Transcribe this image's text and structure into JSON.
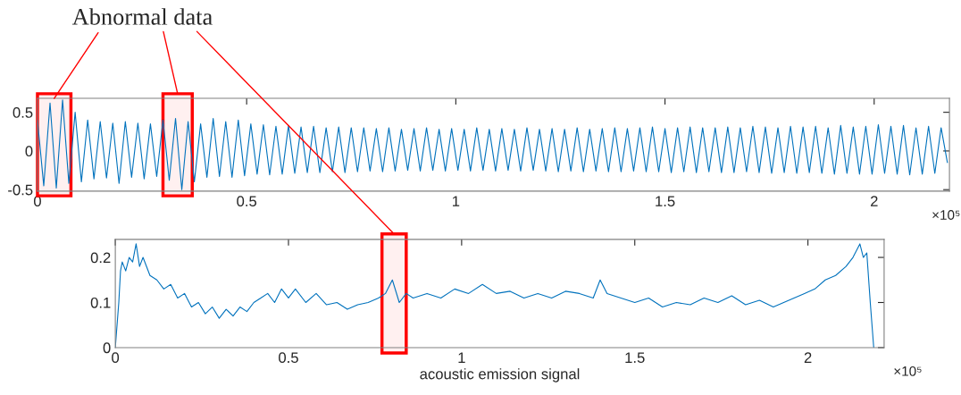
{
  "chart_data": [
    {
      "type": "line",
      "xlim": [
        0,
        2.18
      ],
      "xticks": [
        0,
        0.5,
        1,
        1.5,
        2
      ],
      "ylim": [
        -0.52,
        0.68
      ],
      "yticks": [
        -0.5,
        0,
        0.5
      ],
      "grid": false,
      "marker": "none",
      "line_style": "solid",
      "annotations": [
        {
          "text": "Abnormal data",
          "x": 0.04,
          "y": 0.68
        },
        "×10⁵"
      ],
      "bands": [
        {
          "axis": "x",
          "from": 0.0,
          "to": 0.08,
          "color": "#ff0000"
        },
        {
          "axis": "x",
          "from": 0.3,
          "to": 0.37,
          "color": "#ff0000"
        }
      ],
      "x": [
        0,
        0.015,
        0.03,
        0.045,
        0.06,
        0.075,
        0.09,
        0.105,
        0.12,
        0.135,
        0.15,
        0.165,
        0.18,
        0.195,
        0.21,
        0.225,
        0.24,
        0.255,
        0.27,
        0.285,
        0.3,
        0.315,
        0.33,
        0.345,
        0.36,
        0.375,
        0.39,
        0.405,
        0.42,
        0.435,
        0.45,
        0.465,
        0.48,
        0.495,
        0.51,
        0.525,
        0.54,
        0.555,
        0.57,
        0.585,
        0.6,
        0.615,
        0.63,
        0.645,
        0.66,
        0.675,
        0.69,
        0.705,
        0.72,
        0.735,
        0.75,
        0.765,
        0.78,
        0.795,
        0.81,
        0.825,
        0.84,
        0.855,
        0.87,
        0.885,
        0.9,
        0.915,
        0.93,
        0.945,
        0.96,
        0.975,
        0.99,
        1.005,
        1.02,
        1.035,
        1.05,
        1.065,
        1.08,
        1.095,
        1.11,
        1.125,
        1.14,
        1.155,
        1.17,
        1.185,
        1.2,
        1.215,
        1.23,
        1.245,
        1.26,
        1.275,
        1.29,
        1.305,
        1.32,
        1.335,
        1.35,
        1.365,
        1.38,
        1.395,
        1.41,
        1.425,
        1.44,
        1.455,
        1.47,
        1.485,
        1.5,
        1.515,
        1.53,
        1.545,
        1.56,
        1.575,
        1.59,
        1.605,
        1.62,
        1.635,
        1.65,
        1.665,
        1.68,
        1.695,
        1.71,
        1.725,
        1.74,
        1.755,
        1.77,
        1.785,
        1.8,
        1.815,
        1.83,
        1.845,
        1.86,
        1.875,
        1.89,
        1.905,
        1.92,
        1.935,
        1.95,
        1.965,
        1.98,
        1.995,
        2.01,
        2.025,
        2.04,
        2.055,
        2.07,
        2.085,
        2.1,
        2.115,
        2.13,
        2.145,
        2.16,
        2.175
      ],
      "series": [
        {
          "color": "#0072bd",
          "values": [
            0.4,
            -0.45,
            0.62,
            -0.48,
            0.66,
            -0.42,
            0.5,
            -0.4,
            0.4,
            -0.36,
            0.38,
            -0.35,
            0.36,
            -0.42,
            0.38,
            -0.34,
            0.36,
            -0.36,
            0.35,
            -0.33,
            0.4,
            -0.38,
            0.42,
            -0.5,
            0.38,
            -0.4,
            0.35,
            -0.34,
            0.42,
            -0.33,
            0.38,
            -0.34,
            0.4,
            -0.32,
            0.35,
            -0.3,
            0.34,
            -0.31,
            0.32,
            -0.3,
            0.33,
            -0.29,
            0.31,
            -0.28,
            0.32,
            -0.28,
            0.3,
            -0.27,
            0.31,
            -0.28,
            0.3,
            -0.27,
            0.3,
            -0.26,
            0.29,
            -0.27,
            0.3,
            -0.26,
            0.28,
            -0.25,
            0.29,
            -0.26,
            0.3,
            -0.25,
            0.28,
            -0.26,
            0.29,
            -0.25,
            0.28,
            -0.26,
            0.3,
            -0.25,
            0.28,
            -0.26,
            0.29,
            -0.25,
            0.28,
            -0.26,
            0.3,
            -0.25,
            0.28,
            -0.26,
            0.29,
            -0.27,
            0.28,
            -0.26,
            0.3,
            -0.27,
            0.28,
            -0.26,
            0.29,
            -0.27,
            0.3,
            -0.27,
            0.29,
            -0.26,
            0.3,
            -0.27,
            0.31,
            -0.27,
            0.29,
            -0.28,
            0.3,
            -0.27,
            0.31,
            -0.28,
            0.3,
            -0.27,
            0.3,
            -0.28,
            0.31,
            -0.28,
            0.3,
            -0.27,
            0.32,
            -0.28,
            0.31,
            -0.29,
            0.3,
            -0.28,
            0.32,
            -0.29,
            0.31,
            -0.28,
            0.32,
            -0.29,
            0.3,
            -0.3,
            0.33,
            -0.29,
            0.31,
            -0.3,
            0.32,
            -0.3,
            0.34,
            -0.29,
            0.32,
            -0.3,
            0.33,
            -0.31,
            0.3,
            -0.3,
            0.32,
            -0.29,
            0.3,
            -0.15
          ]
        }
      ]
    },
    {
      "type": "line",
      "xlim": [
        0,
        2.22
      ],
      "xticks": [
        0,
        0.5,
        1,
        1.5,
        2
      ],
      "ylim": [
        0,
        0.24
      ],
      "yticks": [
        0,
        0.1,
        0.2
      ],
      "grid": false,
      "marker": "none",
      "line_style": "solid",
      "xlabel": "acoustic emission signal",
      "annotations": [
        "×10⁵"
      ],
      "bands": [
        {
          "axis": "x",
          "from": 0.77,
          "to": 0.84,
          "color": "#ff0000"
        }
      ],
      "x": [
        0,
        0.01,
        0.015,
        0.02,
        0.03,
        0.04,
        0.05,
        0.06,
        0.07,
        0.08,
        0.1,
        0.12,
        0.14,
        0.16,
        0.18,
        0.2,
        0.22,
        0.24,
        0.26,
        0.28,
        0.3,
        0.32,
        0.34,
        0.36,
        0.38,
        0.4,
        0.42,
        0.44,
        0.46,
        0.48,
        0.5,
        0.52,
        0.55,
        0.58,
        0.61,
        0.64,
        0.67,
        0.7,
        0.73,
        0.76,
        0.78,
        0.8,
        0.82,
        0.84,
        0.86,
        0.9,
        0.94,
        0.98,
        1.02,
        1.06,
        1.1,
        1.14,
        1.18,
        1.22,
        1.26,
        1.3,
        1.34,
        1.38,
        1.4,
        1.42,
        1.46,
        1.5,
        1.54,
        1.58,
        1.62,
        1.66,
        1.7,
        1.74,
        1.78,
        1.82,
        1.86,
        1.9,
        1.93,
        1.96,
        1.99,
        2.02,
        2.05,
        2.08,
        2.11,
        2.13,
        2.15,
        2.16,
        2.17,
        2.18,
        2.19
      ],
      "series": [
        {
          "color": "#0072bd",
          "values": [
            0,
            0.1,
            0.17,
            0.19,
            0.17,
            0.2,
            0.19,
            0.23,
            0.18,
            0.2,
            0.16,
            0.15,
            0.13,
            0.14,
            0.11,
            0.12,
            0.09,
            0.1,
            0.075,
            0.09,
            0.065,
            0.085,
            0.07,
            0.09,
            0.08,
            0.1,
            0.11,
            0.12,
            0.1,
            0.13,
            0.11,
            0.13,
            0.1,
            0.12,
            0.095,
            0.1,
            0.085,
            0.095,
            0.1,
            0.11,
            0.12,
            0.15,
            0.1,
            0.12,
            0.11,
            0.12,
            0.11,
            0.13,
            0.12,
            0.14,
            0.12,
            0.125,
            0.11,
            0.12,
            0.11,
            0.125,
            0.12,
            0.11,
            0.15,
            0.12,
            0.11,
            0.1,
            0.11,
            0.09,
            0.1,
            0.095,
            0.11,
            0.1,
            0.115,
            0.095,
            0.105,
            0.09,
            0.1,
            0.11,
            0.12,
            0.13,
            0.15,
            0.16,
            0.18,
            0.2,
            0.23,
            0.2,
            0.21,
            0.1,
            0.0
          ]
        }
      ]
    }
  ]
}
